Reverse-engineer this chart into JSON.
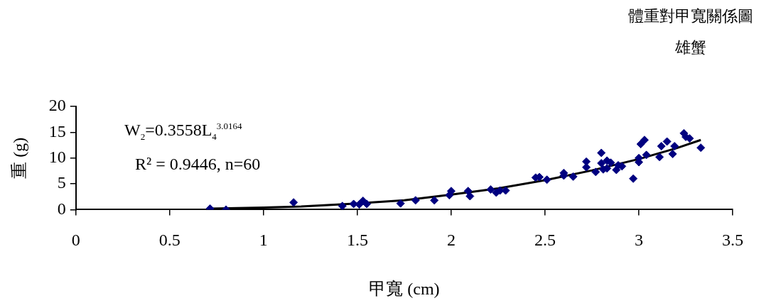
{
  "chart_data": {
    "type": "scatter",
    "title": "體重對甲寬關係圖",
    "subtitle": "雄蟹",
    "xlabel": "甲寬 (cm)",
    "ylabel": "重 (g)",
    "annotations": [
      "W$_{2}$=0.3558L$_{4}$$^{3.0164}$",
      "R² = 0.9446, n=60"
    ],
    "series": [
      {
        "marker": "diamond",
        "color": "#000080",
        "x": [
          0.715,
          0.8,
          1.16,
          1.42,
          1.48,
          1.51,
          1.53,
          1.55,
          1.73,
          1.81,
          1.91,
          1.99,
          2.0,
          2.09,
          2.1,
          2.21,
          2.24,
          2.26,
          2.29,
          2.45,
          2.47,
          2.51,
          2.6,
          2.6,
          2.65,
          2.72,
          2.72,
          2.77,
          2.8,
          2.8,
          2.81,
          2.83,
          2.83,
          2.85,
          2.88,
          2.89,
          2.91,
          2.97,
          3.0,
          3.0,
          3.01,
          3.03,
          3.04,
          3.11,
          3.12,
          3.15,
          3.18,
          3.19,
          3.24,
          3.25,
          3.27,
          3.33
        ],
        "values": [
          0.2,
          0,
          1.4,
          0.7,
          1.1,
          1.0,
          1.7,
          1.1,
          1.2,
          1.8,
          1.8,
          2.8,
          3.6,
          3.6,
          2.6,
          3.9,
          3.3,
          3.7,
          3.7,
          6.2,
          6.3,
          5.8,
          7.1,
          6.6,
          6.4,
          9.3,
          8.2,
          7.3,
          11.0,
          9.0,
          7.8,
          9.5,
          8.0,
          9.1,
          7.7,
          8.6,
          8.4,
          6.0,
          10.0,
          9.2,
          12.7,
          13.5,
          10.6,
          10.2,
          12.3,
          13.2,
          10.8,
          12.3,
          14.8,
          14.1,
          13.8,
          12.0
        ]
      },
      {
        "type": "line",
        "marker": "none",
        "color": "#000000",
        "x": [
          0.715,
          1.0,
          1.2,
          1.5,
          1.75,
          2.0,
          2.25,
          2.5,
          2.75,
          3.0,
          3.2,
          3.33
        ],
        "values": [
          0.2,
          0.4,
          0.6,
          1.2,
          1.8,
          2.9,
          4.1,
          5.7,
          7.6,
          9.8,
          11.9,
          13.5
        ]
      }
    ],
    "xlim": [
      0,
      3.5
    ],
    "xticks": [
      0,
      0.5,
      1,
      1.5,
      2,
      2.5,
      3,
      3.5
    ],
    "ylim": [
      0,
      20
    ],
    "yticks": [
      0,
      5,
      10,
      15,
      20
    ],
    "grid": false,
    "legend": false
  }
}
